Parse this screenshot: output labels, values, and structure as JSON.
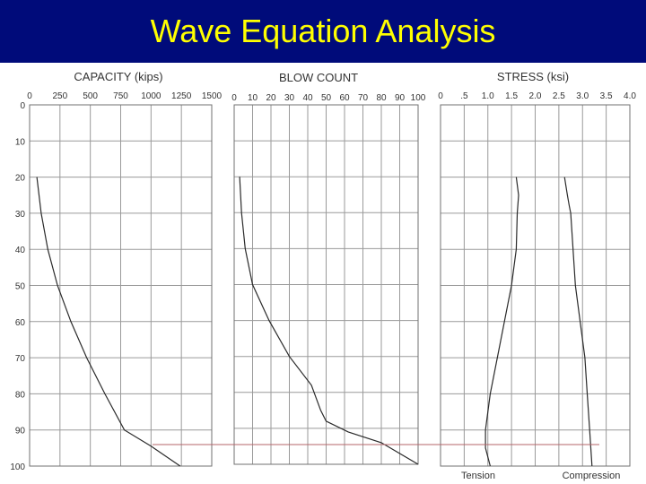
{
  "slide": {
    "title": "Wave Equation Analysis",
    "background_color": "#000b7a",
    "title_color": "#ffff00"
  },
  "chart_data": [
    {
      "type": "line",
      "title": "CAPACITY (kips)",
      "x_ticks": [
        "0",
        "250",
        "500",
        "750",
        "1000",
        "1250",
        "1500"
      ],
      "xlim": [
        0,
        1500
      ],
      "y_ticks": [
        "0",
        "10",
        "20",
        "30",
        "40",
        "50",
        "60",
        "70",
        "80",
        "90",
        "100"
      ],
      "ylim": [
        0,
        100
      ],
      "y_inverted": true,
      "grid": true,
      "series": [
        {
          "points": [
            [
              60,
              20
            ],
            [
              95,
              30
            ],
            [
              150,
              40
            ],
            [
              230,
              50
            ],
            [
              340,
              60
            ],
            [
              470,
              70
            ],
            [
              620,
              80
            ],
            [
              780,
              90
            ],
            [
              1000,
              94.5
            ],
            [
              1240,
              100
            ]
          ]
        }
      ]
    },
    {
      "type": "line",
      "title": "BLOW COUNT",
      "x_ticks": [
        "0",
        "10",
        "20",
        "30",
        "40",
        "50",
        "60",
        "70",
        "80",
        "90",
        "100"
      ],
      "xlim": [
        0,
        100
      ],
      "y_ticks": [
        "0",
        "10",
        "20",
        "30",
        "40",
        "50",
        "60",
        "70",
        "80",
        "90",
        "100"
      ],
      "ylim": [
        0,
        100
      ],
      "y_inverted": true,
      "grid": true,
      "reference_depth": 94.5,
      "series": [
        {
          "points": [
            [
              3,
              20
            ],
            [
              4,
              30
            ],
            [
              6,
              40
            ],
            [
              10,
              50
            ],
            [
              19,
              60
            ],
            [
              30,
              70
            ],
            [
              42,
              78
            ],
            [
              47,
              85
            ],
            [
              50,
              88
            ],
            [
              62,
              91
            ],
            [
              80,
              94
            ],
            [
              100,
              100
            ]
          ]
        }
      ]
    },
    {
      "type": "line",
      "title": "STRESS (ksi)",
      "x_ticks": [
        "0",
        ".5",
        "1.0",
        "1.5",
        "2.0",
        "2.5",
        "3.0",
        "3.5",
        "4.0"
      ],
      "xlim": [
        0,
        4
      ],
      "y_ticks": [
        "0",
        "10",
        "20",
        "30",
        "40",
        "50",
        "60",
        "70",
        "80",
        "90",
        "100"
      ],
      "ylim": [
        0,
        100
      ],
      "y_inverted": true,
      "grid": true,
      "reference_depth": 94.5,
      "bottom_labels": [
        "Tension",
        "Compression"
      ],
      "series": [
        {
          "name": "Tension",
          "points": [
            [
              1.6,
              20
            ],
            [
              1.65,
              25
            ],
            [
              1.62,
              30
            ],
            [
              1.6,
              40
            ],
            [
              1.5,
              50
            ],
            [
              1.35,
              60
            ],
            [
              1.2,
              70
            ],
            [
              1.05,
              80
            ],
            [
              0.95,
              90
            ],
            [
              0.95,
              95
            ],
            [
              1.05,
              100
            ]
          ]
        },
        {
          "name": "Compression",
          "points": [
            [
              2.62,
              20
            ],
            [
              2.68,
              25
            ],
            [
              2.72,
              28
            ],
            [
              2.75,
              30
            ],
            [
              2.8,
              40
            ],
            [
              2.85,
              50
            ],
            [
              2.95,
              60
            ],
            [
              3.05,
              70
            ],
            [
              3.1,
              80
            ],
            [
              3.15,
              90
            ],
            [
              3.2,
              100
            ]
          ]
        }
      ]
    }
  ]
}
